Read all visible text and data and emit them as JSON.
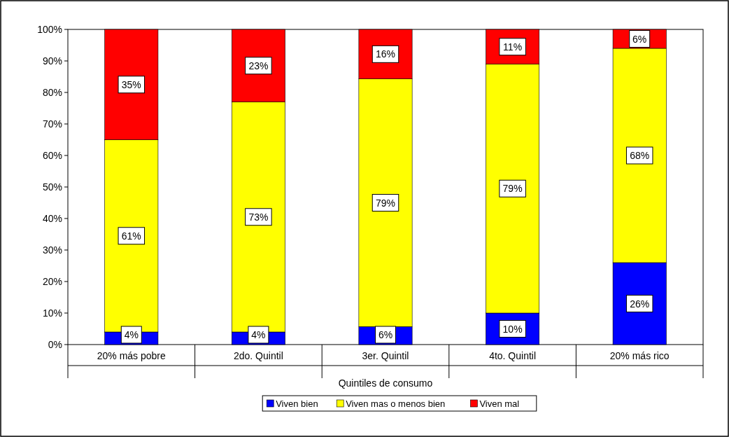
{
  "chart_data": {
    "type": "bar",
    "stacked": true,
    "xlabel": "Quintiles de consumo",
    "categories": [
      "20% más pobre",
      "2do. Quintil",
      "3er. Quintil",
      "4to. Quintil",
      "20% más rico"
    ],
    "series": [
      {
        "name": "Viven bien",
        "color": "#0000ff",
        "values": [
          4,
          4,
          5.7,
          10,
          26
        ],
        "value_labels": [
          "4%",
          "4%",
          "6%",
          "10%",
          "26%"
        ]
      },
      {
        "name": "Viven mas o menos bien",
        "color": "#ffff00",
        "values": [
          61,
          73,
          78.6,
          79,
          68
        ],
        "value_labels": [
          "61%",
          "73%",
          "79%",
          "79%",
          "68%"
        ]
      },
      {
        "name": "Viven mal",
        "color": "#ff0000",
        "values": [
          35,
          23,
          15.7,
          11,
          6
        ],
        "value_labels": [
          "35%",
          "23%",
          "16%",
          "11%",
          "6%"
        ]
      }
    ],
    "ylim": [
      0,
      100
    ],
    "yticks": [
      {
        "value": 0,
        "label": "0%"
      },
      {
        "value": 10,
        "label": "10%"
      },
      {
        "value": 20,
        "label": "20%"
      },
      {
        "value": 30,
        "label": "30%"
      },
      {
        "value": 40,
        "label": "40%"
      },
      {
        "value": 50,
        "label": "50%"
      },
      {
        "value": 60,
        "label": "60%"
      },
      {
        "value": 70,
        "label": "70%"
      },
      {
        "value": 80,
        "label": "80%"
      },
      {
        "value": 90,
        "label": "90%"
      },
      {
        "value": 100,
        "label": "100%"
      }
    ],
    "legend": "bottom"
  }
}
